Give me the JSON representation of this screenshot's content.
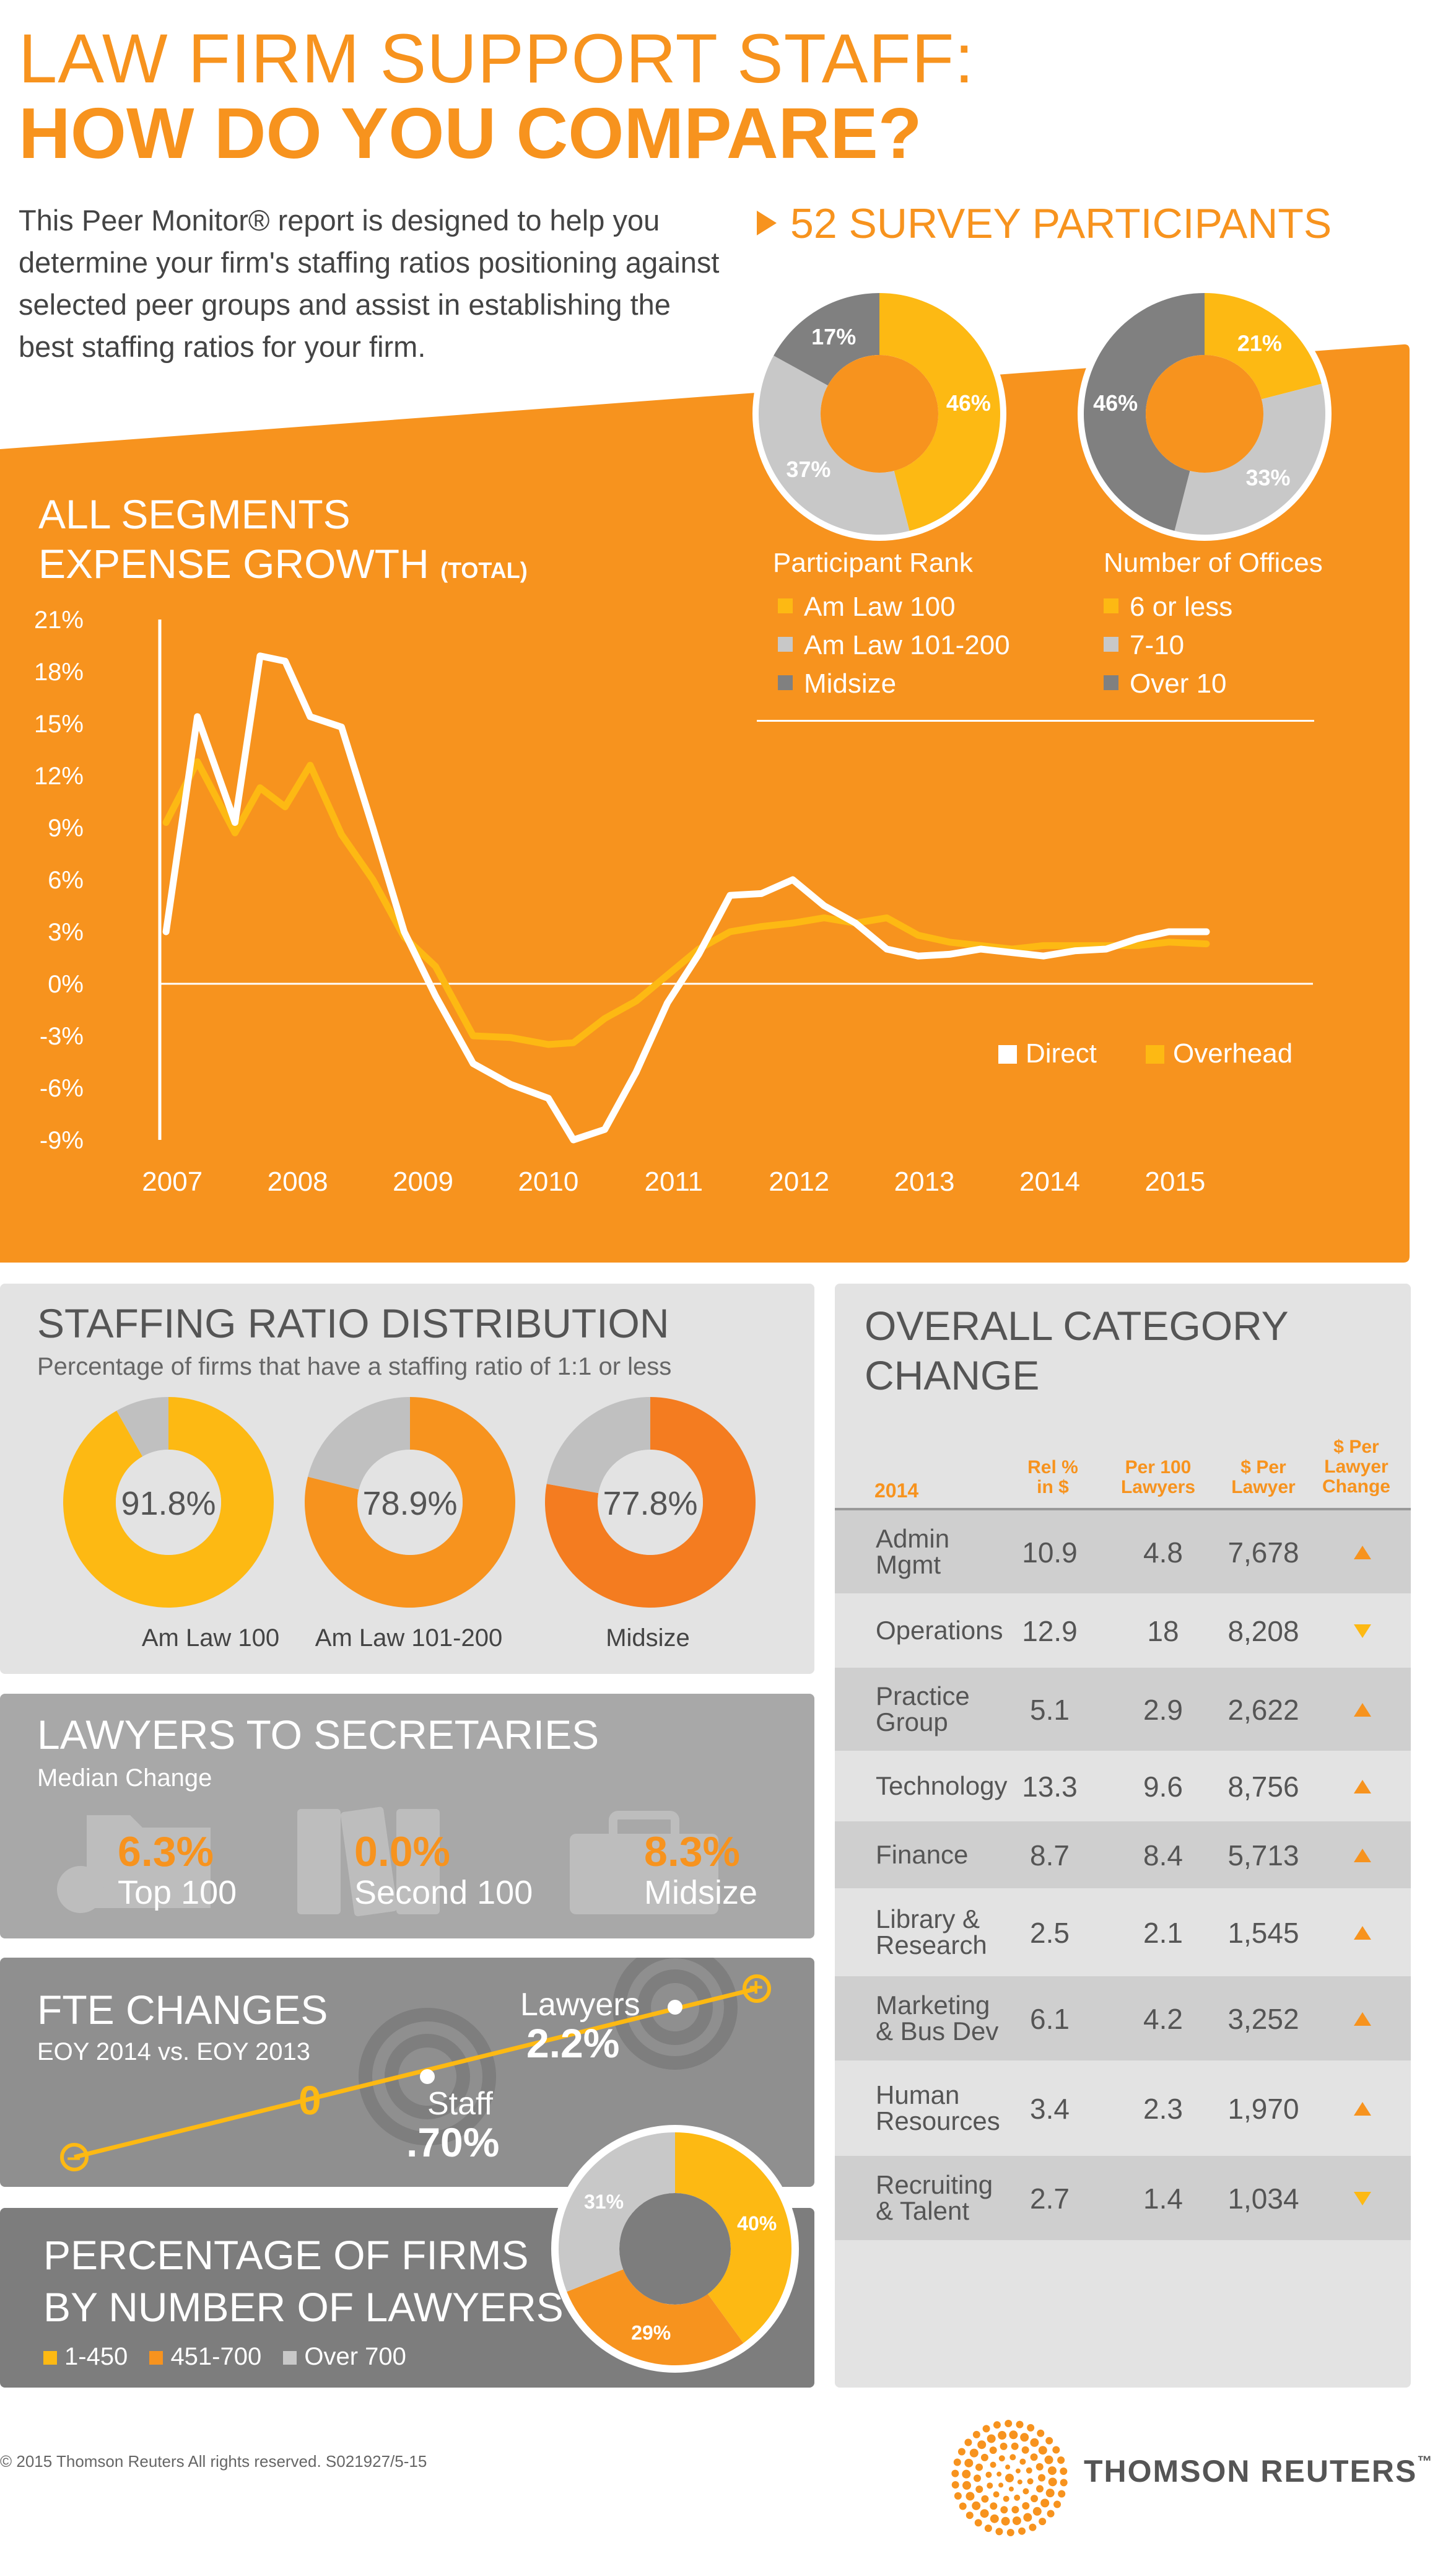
{
  "header": {
    "title_line1": "LAW FIRM SUPPORT STAFF:",
    "title_line2": "HOW DO YOU COMPARE?",
    "intro": "This Peer Monitor® report is designed to help you determine your firm's staffing ratios positioning against selected peer groups and assist in establishing the best staffing ratios for your firm.",
    "participants": "52 SURVEY PARTICIPANTS"
  },
  "colors": {
    "orange": "#f7931e",
    "yellow": "#fdb913",
    "deep_orange": "#f47c20",
    "light_gray": "#c8c8c8",
    "dark_gray": "#808080"
  },
  "participant_rank": {
    "title": "Participant Rank",
    "legend": [
      "Am Law 100",
      "Am Law 101-200",
      "Midsize"
    ],
    "values": [
      46,
      37,
      17
    ],
    "labels": [
      "46%",
      "37%",
      "17%"
    ]
  },
  "number_of_offices": {
    "title": "Number of Offices",
    "legend": [
      "6 or less",
      "7-10",
      "Over 10"
    ],
    "values": [
      21,
      33,
      46
    ],
    "labels": [
      "21%",
      "33%",
      "46%"
    ]
  },
  "expense_growth": {
    "title_line1": "ALL SEGMENTS",
    "title_line2": "EXPENSE GROWTH",
    "title_suffix": "(TOTAL)"
  },
  "chart_data": {
    "type": "line",
    "y_ticks": [
      "21%",
      "18%",
      "15%",
      "12%",
      "9%",
      "6%",
      "3%",
      "0%",
      "-3%",
      "-6%",
      "-9%"
    ],
    "x_ticks": [
      "2007",
      "2008",
      "2009",
      "2010",
      "2011",
      "2012",
      "2013",
      "2014",
      "2015"
    ],
    "x_tick_positions": [
      2007,
      2008,
      2009,
      2010,
      2011,
      2012,
      2013,
      2014,
      2015
    ],
    "ylim": [
      -9,
      21
    ],
    "xlim": [
      2006.9,
      2016.1
    ],
    "legend_placement": "lower-right",
    "series": [
      {
        "name": "Direct",
        "color": "#ffffff",
        "x": [
          2006.95,
          2007.2,
          2007.5,
          2007.7,
          2007.9,
          2008.1,
          2008.35,
          2008.6,
          2008.85,
          2009.1,
          2009.4,
          2009.7,
          2010.0,
          2010.2,
          2010.45,
          2010.7,
          2010.95,
          2011.2,
          2011.45,
          2011.7,
          2011.95,
          2012.2,
          2012.45,
          2012.7,
          2012.95,
          2013.2,
          2013.45,
          2013.7,
          2013.95,
          2014.2,
          2014.45,
          2014.7,
          2014.95,
          2015.25
        ],
        "y": [
          3.0,
          15.4,
          9.3,
          18.9,
          18.6,
          15.4,
          14.8,
          9.0,
          3.0,
          -0.7,
          -4.6,
          -5.8,
          -6.6,
          -9.0,
          -8.4,
          -5.1,
          -1.1,
          1.7,
          5.1,
          5.2,
          6.0,
          4.5,
          3.5,
          2.0,
          1.6,
          1.7,
          2.0,
          1.8,
          1.6,
          1.9,
          2.0,
          2.6,
          3.0,
          3.0
        ]
      },
      {
        "name": "Overhead",
        "color": "#fdb913",
        "x": [
          2006.95,
          2007.2,
          2007.5,
          2007.7,
          2007.9,
          2008.1,
          2008.35,
          2008.6,
          2008.85,
          2009.1,
          2009.4,
          2009.7,
          2010.0,
          2010.2,
          2010.45,
          2010.7,
          2010.95,
          2011.2,
          2011.45,
          2011.7,
          2011.95,
          2012.2,
          2012.45,
          2012.7,
          2012.95,
          2013.2,
          2013.45,
          2013.7,
          2013.95,
          2014.2,
          2014.45,
          2014.7,
          2014.95,
          2015.25
        ],
        "y": [
          9.3,
          12.8,
          8.7,
          11.3,
          10.2,
          12.6,
          8.6,
          6.0,
          2.7,
          1.0,
          -3.0,
          -3.1,
          -3.5,
          -3.4,
          -2.0,
          -1.0,
          0.5,
          2.0,
          3.0,
          3.3,
          3.5,
          3.8,
          3.5,
          3.8,
          2.8,
          2.4,
          2.2,
          2.0,
          2.2,
          2.2,
          2.2,
          2.2,
          2.4,
          2.3
        ]
      }
    ]
  },
  "staffing_ratio": {
    "title": "STAFFING RATIO DISTRIBUTION",
    "subtitle": "Percentage of firms that have a staffing ratio of 1:1 or less",
    "items": [
      {
        "label": "Am Law 100",
        "value_text": "91.8%",
        "value": 91.8,
        "color": "#fdb913"
      },
      {
        "label": "Am Law 101-200",
        "value_text": "78.9%",
        "value": 78.9,
        "color": "#f7931e"
      },
      {
        "label": "Midsize",
        "value_text": "77.8%",
        "value": 77.8,
        "color": "#f47c20"
      }
    ]
  },
  "lawyers_secretaries": {
    "title": "LAWYERS TO SECRETARIES",
    "subtitle": "Median Change",
    "items": [
      {
        "value": "6.3%",
        "label": "Top 100"
      },
      {
        "value": "0.0%",
        "label": "Second 100"
      },
      {
        "value": "8.3%",
        "label": "Midsize"
      }
    ]
  },
  "fte_changes": {
    "title": "FTE CHANGES",
    "subtitle": "EOY 2014 vs. EOY 2013",
    "lawyers_label": "Lawyers",
    "lawyers_value": "2.2%",
    "staff_label": "Staff",
    "staff_value": ".70%",
    "zero_label": "0",
    "minus_label": "–",
    "plus_label": "+"
  },
  "firms_by_lawyers": {
    "title_line1": "PERCENTAGE OF FIRMS",
    "title_line2": "BY NUMBER OF LAWYERS",
    "legend": [
      "1-450",
      "451-700",
      "Over 700"
    ],
    "values": [
      40,
      29,
      31
    ],
    "labels": [
      "40%",
      "29%",
      "31%"
    ]
  },
  "category_change": {
    "title_line1": "OVERALL CATEGORY",
    "title_line2": "CHANGE",
    "headers": {
      "year": "2014",
      "rel": "Rel %\nin $",
      "per100": "Per 100\nLawyers",
      "perlawyer": "$ Per\nLawyer",
      "change": "$ Per\nLawyer\nChange"
    },
    "rows": [
      {
        "name": "Admin\nMgmt",
        "rel": "10.9",
        "per100": "4.8",
        "perlawyer": "7,678",
        "trend": "up"
      },
      {
        "name": "Operations",
        "rel": "12.9",
        "per100": "18",
        "perlawyer": "8,208",
        "trend": "down"
      },
      {
        "name": "Practice\nGroup",
        "rel": "5.1",
        "per100": "2.9",
        "perlawyer": "2,622",
        "trend": "up"
      },
      {
        "name": "Technology",
        "rel": "13.3",
        "per100": "9.6",
        "perlawyer": "8,756",
        "trend": "up"
      },
      {
        "name": "Finance",
        "rel": "8.7",
        "per100": "8.4",
        "perlawyer": "5,713",
        "trend": "up"
      },
      {
        "name": "Library &\nResearch",
        "rel": "2.5",
        "per100": "2.1",
        "perlawyer": "1,545",
        "trend": "up"
      },
      {
        "name": "Marketing\n& Bus Dev",
        "rel": "6.1",
        "per100": "4.2",
        "perlawyer": "3,252",
        "trend": "up"
      },
      {
        "name": "Human\nResources",
        "rel": "3.4",
        "per100": "2.3",
        "perlawyer": "1,970",
        "trend": "up"
      },
      {
        "name": "Recruiting\n& Talent",
        "rel": "2.7",
        "per100": "1.4",
        "perlawyer": "1,034",
        "trend": "down"
      }
    ]
  },
  "footer": {
    "copyright": "© 2015 Thomson Reuters All rights reserved.  S021927/5-15",
    "brand": "THOMSON REUTERS",
    "tm": "™"
  }
}
